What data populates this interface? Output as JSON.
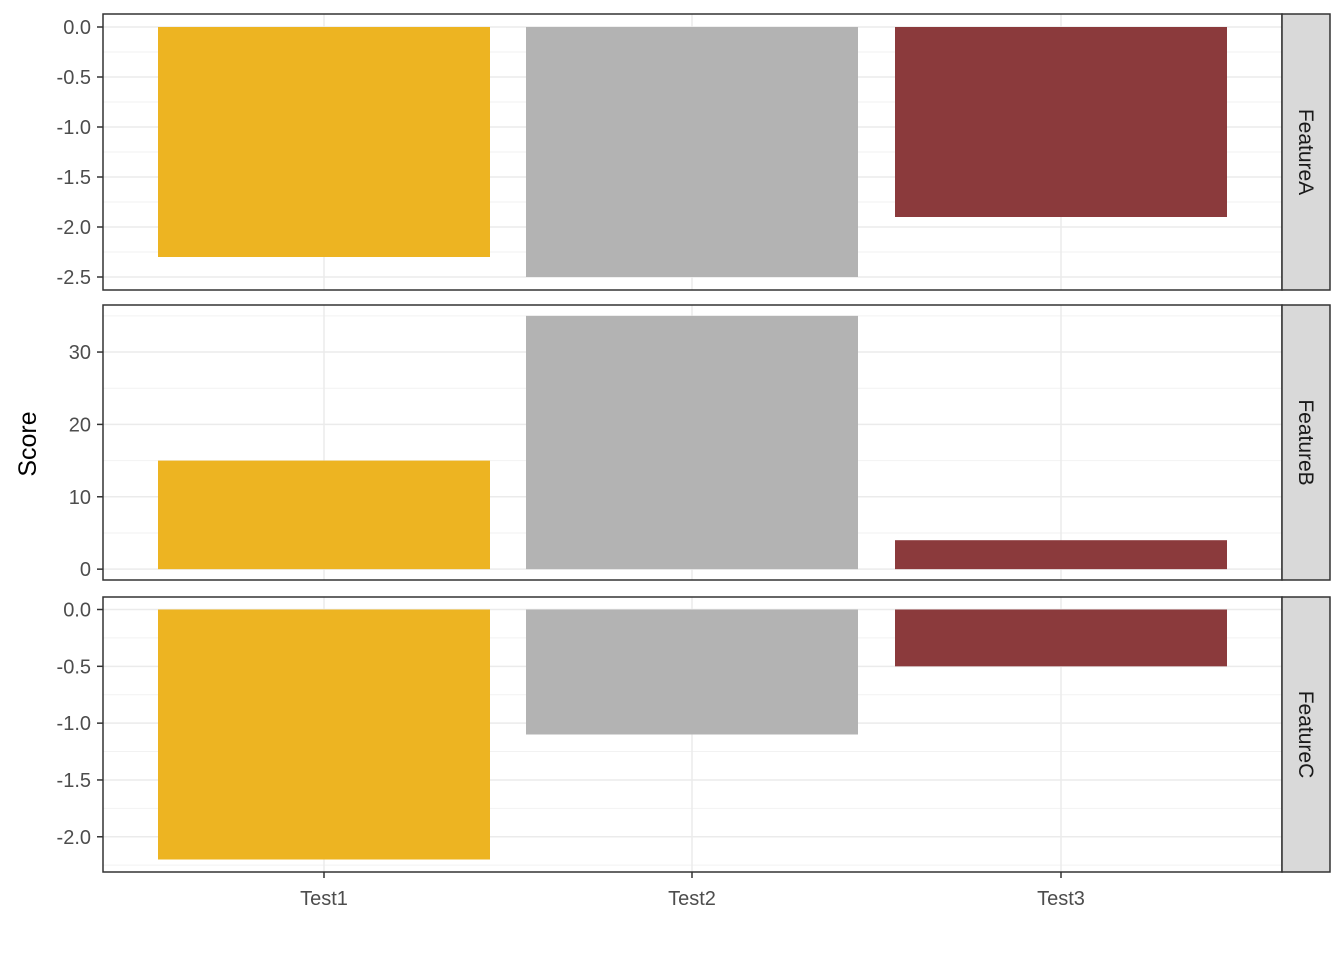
{
  "chart_data": {
    "type": "bar",
    "layout": "faceted-vertical",
    "categories": [
      "Test1",
      "Test2",
      "Test3"
    ],
    "ylabel": "Score",
    "xlabel": "",
    "colors": [
      "#EDB422",
      "#B3B3B3",
      "#8B3A3C"
    ],
    "grid": true,
    "legend": "none",
    "facets": [
      {
        "label": "FeatureA",
        "values": [
          -2.3,
          -2.5,
          -1.9
        ],
        "ylim": [
          -2.63,
          0.13
        ],
        "ticks": [
          0.0,
          -0.5,
          -1.0,
          -1.5,
          -2.0,
          -2.5
        ],
        "tick_labels": [
          "0.0",
          "-0.5",
          "-1.0",
          "-1.5",
          "-2.0",
          "-2.5"
        ]
      },
      {
        "label": "FeatureB",
        "values": [
          15,
          35,
          4
        ],
        "ylim": [
          -1.5,
          36.5
        ],
        "ticks": [
          0,
          10,
          20,
          30
        ],
        "tick_labels": [
          "0",
          "10",
          "20",
          "30"
        ]
      },
      {
        "label": "FeatureC",
        "values": [
          -2.2,
          -1.1,
          -0.5
        ],
        "ylim": [
          -2.31,
          0.11
        ],
        "ticks": [
          0.0,
          -0.5,
          -1.0,
          -1.5,
          -2.0
        ],
        "tick_labels": [
          "0.0",
          "-0.5",
          "-1.0",
          "-1.5",
          "-2.0"
        ]
      }
    ]
  }
}
